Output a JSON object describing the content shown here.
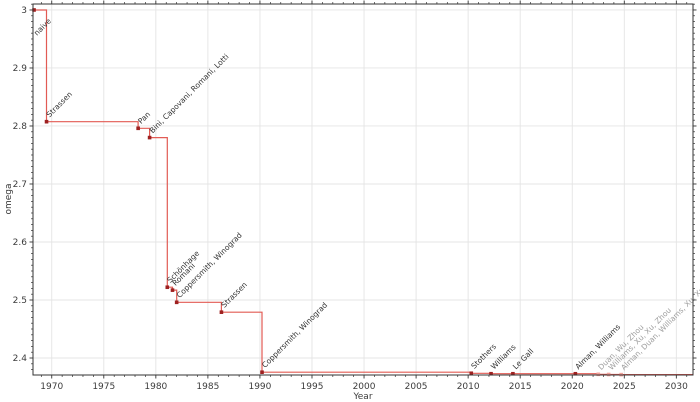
{
  "chart_data": {
    "type": "line",
    "step_mode": "post",
    "title": "",
    "xlabel": "Year",
    "ylabel": "omega",
    "xlim": [
      1968.2,
      2031.6
    ],
    "ylim": [
      2.3707,
      3.0103
    ],
    "grid": true,
    "legend": "none",
    "x_ticks": {
      "values": [
        1970,
        1975,
        1980,
        1985,
        1990,
        1995,
        2000,
        2005,
        2010,
        2015,
        2020,
        2025,
        2030
      ],
      "labels": [
        "1970",
        "1975",
        "1980",
        "1985",
        "1990",
        "1995",
        "2000",
        "2005",
        "2010",
        "2015",
        "2020",
        "2025",
        "2030"
      ]
    },
    "y_ticks": {
      "values": [
        2.4,
        2.5,
        2.6,
        2.7,
        2.8,
        2.9,
        3.0
      ],
      "labels": [
        "2.4",
        "2.5",
        "2.6",
        "2.7",
        "2.8",
        "2.9",
        "3"
      ]
    },
    "minor_x_step_years": 1,
    "minor_y_step": 0.01,
    "colors": {
      "line": "#e25b54",
      "marker": "#9e2121",
      "faded_marker": "#f2a19b",
      "label": "#333333",
      "faded_label": "#9f9f9f",
      "grid": "#e4e4e4",
      "spine": "#333333",
      "tick_label": "#3c3c3c",
      "background": "#ffffff"
    },
    "points": [
      {
        "year": 1968.3,
        "omega": 3.0,
        "label": "naive",
        "label_below": true
      },
      {
        "year": 1969.5,
        "omega": 2.8074,
        "label": "Strassen"
      },
      {
        "year": 1978.3,
        "omega": 2.796,
        "label": "Pan"
      },
      {
        "year": 1979.4,
        "omega": 2.78,
        "label": "Bini, Capovani, Romani, Lotti"
      },
      {
        "year": 1981.1,
        "omega": 2.522,
        "label": "Schönhage"
      },
      {
        "year": 1981.6,
        "omega": 2.517,
        "label": "Romani"
      },
      {
        "year": 1982.0,
        "omega": 2.496,
        "label": "Coppersmith, Winograd"
      },
      {
        "year": 1986.3,
        "omega": 2.479,
        "label": "Strassen"
      },
      {
        "year": 1990.2,
        "omega": 2.3755,
        "label": "Coppersmith, Winograd"
      },
      {
        "year": 2010.3,
        "omega": 2.3737,
        "label": "Stothers"
      },
      {
        "year": 2012.2,
        "omega": 2.3729,
        "label": "Williams"
      },
      {
        "year": 2014.3,
        "omega": 2.3728639,
        "label": "Le Gall"
      },
      {
        "year": 2020.3,
        "omega": 2.3728596,
        "label": "Alman, Williams"
      },
      {
        "year": 2022.5,
        "omega": 2.371866,
        "label": "Duan, Wu, Zhou",
        "faded": true
      },
      {
        "year": 2023.5,
        "omega": 2.371552,
        "label": "Williams, Xu, Xu, Zhou",
        "faded": true
      },
      {
        "year": 2024.7,
        "omega": 2.371339,
        "label": "Alman, Duan, Williams, Xu, Xu, Zhou",
        "faded": true
      }
    ]
  }
}
